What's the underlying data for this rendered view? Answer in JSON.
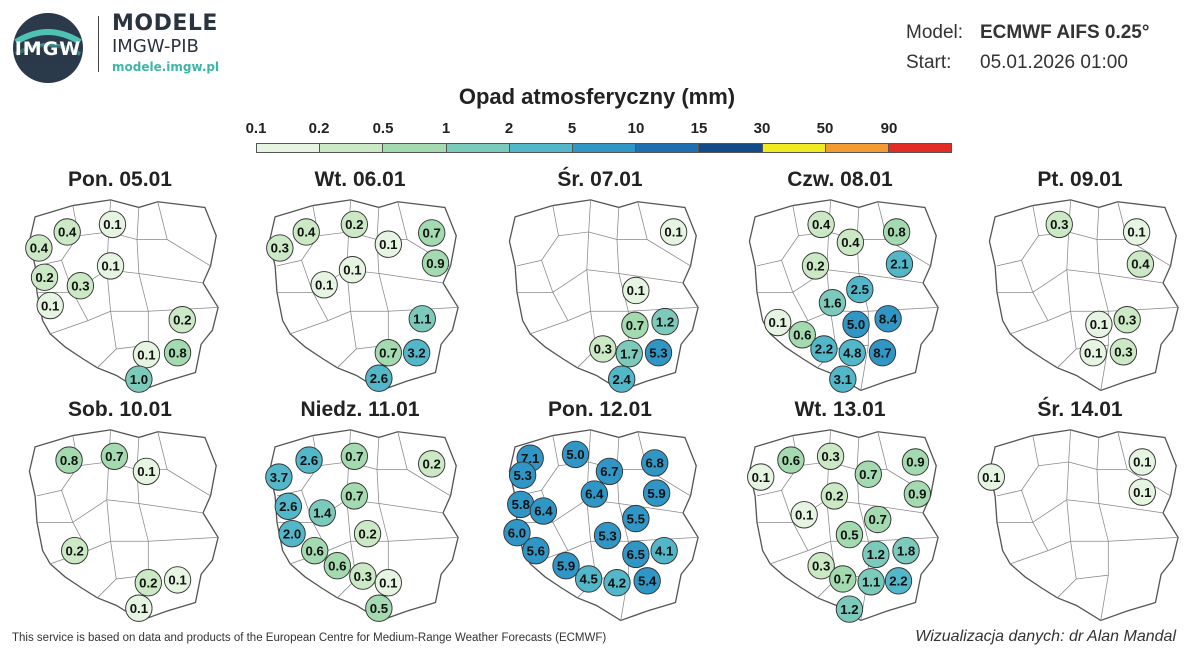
{
  "header": {
    "logo_text": "IMGW",
    "brand_line1": "MODELE",
    "brand_line2": "IMGW-PIB",
    "brand_url": "modele.imgw.pl",
    "model_label": "Model:",
    "model_value": "ECMWF AIFS 0.25°",
    "start_label": "Start:",
    "start_value": "05.01.2026 01:00"
  },
  "legend": {
    "title": "Opad atmosferyczny (mm)",
    "ticks": [
      "0.1",
      "0.2",
      "0.5",
      "1",
      "2",
      "5",
      "10",
      "15",
      "30",
      "50",
      "90"
    ],
    "colors": [
      "#e6f4e2",
      "#cbe9c5",
      "#a4dab0",
      "#7ccabb",
      "#52b7c8",
      "#3096c6",
      "#1d6fb0",
      "#124b8a",
      "#f0ea20",
      "#f39a31",
      "#e32c24"
    ]
  },
  "maps": [
    {
      "title": "Pon. 05.01",
      "values": [
        "0.4",
        "0.1",
        "0.4",
        "0.1",
        "0.2",
        "0.3",
        "0.1",
        "0.2",
        "0.1",
        "0.8",
        "1.0"
      ]
    },
    {
      "title": "Wt. 06.01",
      "values": [
        "0.4",
        "0.2",
        "0.3",
        "0.1",
        "0.7",
        "0.1",
        "0.9",
        "0.1",
        "1.1",
        "0.7",
        "3.2",
        "2.6"
      ]
    },
    {
      "title": "Śr. 07.01",
      "values": [
        "0.1",
        "0.1",
        "0.7",
        "1.2",
        "0.3",
        "1.7",
        "5.3",
        "2.4"
      ]
    },
    {
      "title": "Czw. 08.01",
      "values": [
        "0.4",
        "0.8",
        "0.4",
        "0.2",
        "2.1",
        "2.5",
        "1.6",
        "0.1",
        "5.0",
        "8.4",
        "0.6",
        "2.2",
        "4.8",
        "8.7",
        "3.1"
      ]
    },
    {
      "title": "Pt. 09.01",
      "values": [
        "0.3",
        "0.1",
        "0.4",
        "0.1",
        "0.3",
        "0.1",
        "0.3"
      ]
    },
    {
      "title": "Sob. 10.01",
      "values": [
        "0.8",
        "0.7",
        "0.1",
        "0.2",
        "0.2",
        "0.1",
        "0.1"
      ]
    },
    {
      "title": "Niedz. 11.01",
      "values": [
        "2.6",
        "0.7",
        "0.2",
        "3.7",
        "0.7",
        "2.6",
        "1.4",
        "2.0",
        "0.2",
        "0.6",
        "0.6",
        "0.3",
        "0.1",
        "0.5"
      ]
    },
    {
      "title": "Pon. 12.01",
      "values": [
        "7.1",
        "5.0",
        "6.8",
        "5.3",
        "6.7",
        "5.8",
        "6.4",
        "5.9",
        "6.4",
        "5.5",
        "6.0",
        "5.3",
        "4.1",
        "5.6",
        "6.5",
        "5.9",
        "4.5",
        "4.2",
        "5.4"
      ]
    },
    {
      "title": "Wt. 13.01",
      "values": [
        "0.6",
        "0.3",
        "0.9",
        "0.1",
        "0.7",
        "0.2",
        "0.9",
        "0.1",
        "0.7",
        "0.5",
        "1.8",
        "1.2",
        "0.3",
        "0.7",
        "1.1",
        "2.2",
        "1.2"
      ]
    },
    {
      "title": "Śr. 14.01",
      "values": [
        "0.1",
        "0.1",
        "0.1"
      ]
    }
  ],
  "footer": {
    "source": "This service is based on data and products of the European Centre for Medium-Range Weather Forecasts (ECMWF)",
    "credit": "Wizualizacja danych: dr Alan Mandal"
  }
}
